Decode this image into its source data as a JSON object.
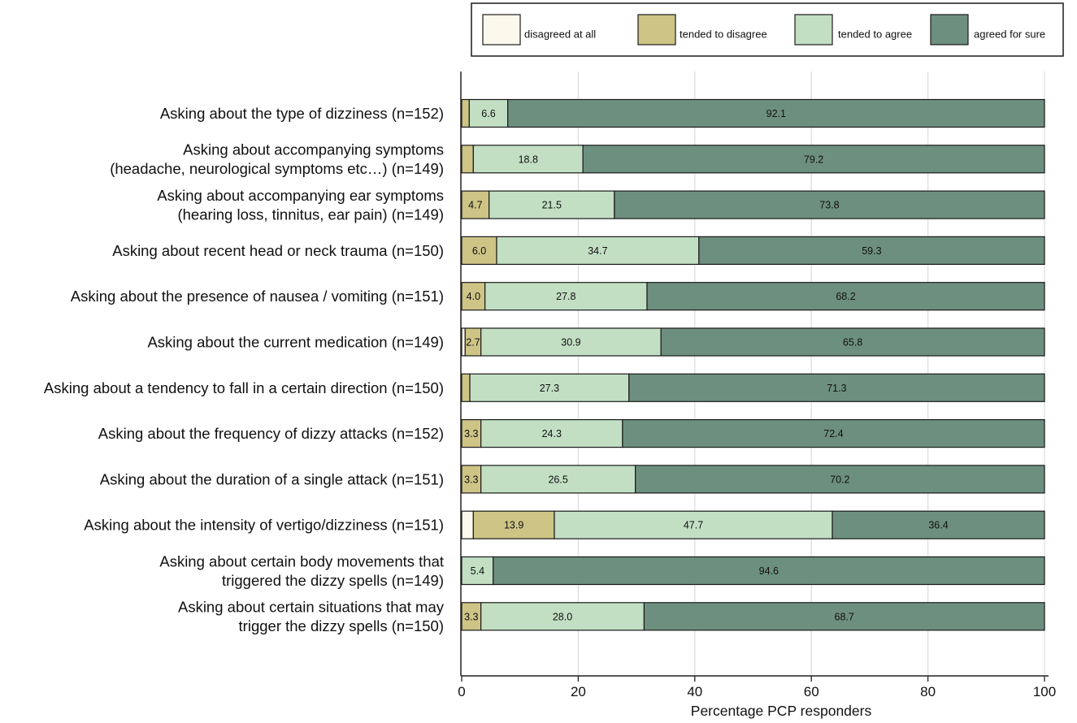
{
  "chart_data": {
    "type": "bar",
    "orientation": "horizontal",
    "stacked": true,
    "xlabel": "Percentage PCP responders",
    "ylabel": "",
    "xlim": [
      0,
      100
    ],
    "xticks": [
      0,
      20,
      40,
      60,
      80,
      100
    ],
    "grid": "vertical",
    "legend_position": "top",
    "categories": [
      [
        "Asking about the type of dizziness (n=152)"
      ],
      [
        "Asking about accompanying symptoms",
        "(headache, neurological symptoms etc…) (n=149)"
      ],
      [
        "Asking about accompanying ear symptoms",
        "(hearing loss, tinnitus, ear pain) (n=149)"
      ],
      [
        "Asking about recent head or neck trauma (n=150)"
      ],
      [
        "Asking about the presence of nausea / vomiting (n=151)"
      ],
      [
        "Asking about the current medication  (n=149)"
      ],
      [
        "Asking about a tendency to fall in a certain direction (n=150)"
      ],
      [
        "Asking about the frequency of dizzy attacks (n=152)"
      ],
      [
        "Asking about the duration of a single attack (n=151)"
      ],
      [
        "Asking about the intensity of vertigo/dizziness (n=151)"
      ],
      [
        "Asking about certain body movements that",
        "triggered the dizzy spells (n=149)"
      ],
      [
        "Asking about certain situations that may",
        "trigger the dizzy spells (n=150)"
      ]
    ],
    "series": [
      {
        "name": "disagreed at all",
        "color": "#fdf8ec",
        "values": [
          0,
          0,
          0,
          0,
          0,
          0.6,
          0,
          0,
          0,
          2.0,
          0,
          0
        ],
        "labels": [
          "",
          "",
          "",
          "",
          "",
          "",
          "",
          "",
          "",
          "",
          "",
          ""
        ]
      },
      {
        "name": "tended to disagree",
        "color": "#cdc486",
        "values": [
          1.3,
          2.0,
          4.7,
          6.0,
          4.0,
          2.7,
          1.4,
          3.3,
          3.3,
          13.9,
          0,
          3.3
        ],
        "labels": [
          "",
          "",
          "4.7",
          "6.0",
          "4.0",
          "2.7",
          "",
          "3.3",
          "3.3",
          "13.9",
          "",
          "3.3"
        ]
      },
      {
        "name": "tended to agree",
        "color": "#c2dfc4",
        "values": [
          6.6,
          18.8,
          21.5,
          34.7,
          27.8,
          30.9,
          27.3,
          24.3,
          26.5,
          47.7,
          5.4,
          28.0
        ],
        "labels": [
          "6.6",
          "18.8",
          "21.5",
          "34.7",
          "27.8",
          "30.9",
          "27.3",
          "24.3",
          "26.5",
          "47.7",
          "5.4",
          "28.0"
        ]
      },
      {
        "name": "agreed for sure",
        "color": "#6d8f80",
        "values": [
          92.1,
          79.2,
          73.8,
          59.3,
          68.2,
          65.8,
          71.3,
          72.4,
          70.2,
          36.4,
          94.6,
          68.7
        ],
        "labels": [
          "92.1",
          "79.2",
          "73.8",
          "59.3",
          "68.2",
          "65.8",
          "71.3",
          "72.4",
          "70.2",
          "36.4",
          "94.6",
          "68.7"
        ]
      }
    ]
  }
}
